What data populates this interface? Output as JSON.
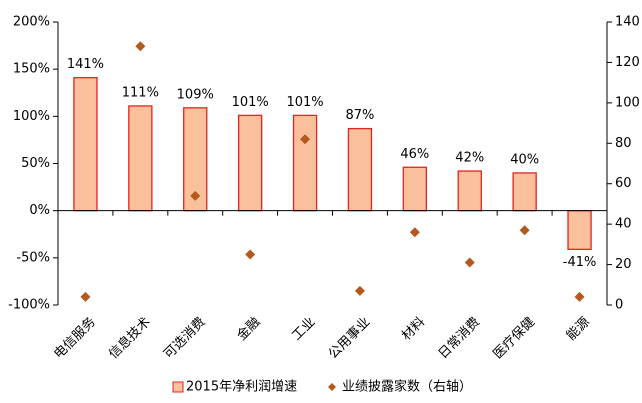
{
  "chart_data": {
    "type": "bar",
    "categories": [
      "电信服务",
      "信息技术",
      "可选消费",
      "金融",
      "工业",
      "公用事业",
      "材料",
      "日常消费",
      "医疗保健",
      "能源"
    ],
    "series": [
      {
        "name": "2015年净利润增速",
        "type": "bar",
        "color": "#fac09c",
        "edgecolor": "#e3231f",
        "values": [
          141,
          111,
          109,
          101,
          101,
          87,
          46,
          42,
          40,
          -41
        ],
        "value_labels": [
          "141%",
          "111%",
          "109%",
          "101%",
          "101%",
          "87%",
          "46%",
          "42%",
          "40%",
          "-41%"
        ]
      },
      {
        "name": "业绩披露家数（右轴）",
        "type": "scatter",
        "axis": "y2",
        "color": "#b5581c",
        "values": [
          4,
          128,
          54,
          25,
          82,
          7,
          36,
          21,
          37,
          4
        ]
      }
    ],
    "ylim": [
      -100,
      200
    ],
    "yticks": [
      {
        "value": -100,
        "label": "-100%"
      },
      {
        "value": -50,
        "label": "-50%"
      },
      {
        "value": 0,
        "label": "0%"
      },
      {
        "value": 50,
        "label": "50%"
      },
      {
        "value": 100,
        "label": "100%"
      },
      {
        "value": 150,
        "label": "150%"
      },
      {
        "value": 200,
        "label": "200%"
      }
    ],
    "y2lim": [
      0,
      140
    ],
    "y2ticks": [
      0,
      20,
      40,
      60,
      80,
      100,
      120,
      140
    ],
    "legend": "bottom"
  }
}
